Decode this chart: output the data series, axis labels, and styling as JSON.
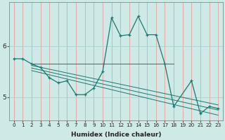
{
  "xlabel": "Humidex (Indice chaleur)",
  "bg_color": "#ceeae6",
  "line_color": "#1a7870",
  "grid_color": "#f0c8c8",
  "series1": {
    "x": [
      0,
      1,
      2,
      3,
      4,
      5,
      6,
      7,
      8,
      9,
      10,
      11,
      12,
      13,
      14,
      15,
      16,
      17,
      18,
      20,
      21,
      22,
      23
    ],
    "y": [
      5.75,
      5.75,
      5.65,
      5.58,
      5.38,
      5.28,
      5.32,
      5.05,
      5.05,
      5.18,
      5.5,
      6.55,
      6.2,
      6.22,
      6.58,
      6.22,
      6.22,
      5.65,
      4.82,
      5.32,
      4.68,
      4.82,
      4.78
    ]
  },
  "series2_straight": [
    {
      "x": [
        2,
        18
      ],
      "y": [
        5.65,
        5.65
      ]
    },
    {
      "x": [
        2,
        23
      ],
      "y": [
        5.62,
        4.85
      ]
    },
    {
      "x": [
        2,
        23
      ],
      "y": [
        5.57,
        4.75
      ]
    },
    {
      "x": [
        2,
        23
      ],
      "y": [
        5.52,
        4.65
      ]
    }
  ],
  "xlim": [
    -0.5,
    23.5
  ],
  "ylim": [
    4.55,
    6.85
  ],
  "yticks": [
    5,
    6
  ],
  "xticks": [
    0,
    1,
    2,
    3,
    4,
    5,
    6,
    7,
    8,
    9,
    10,
    11,
    12,
    13,
    14,
    15,
    16,
    17,
    18,
    19,
    20,
    21,
    22,
    23
  ]
}
